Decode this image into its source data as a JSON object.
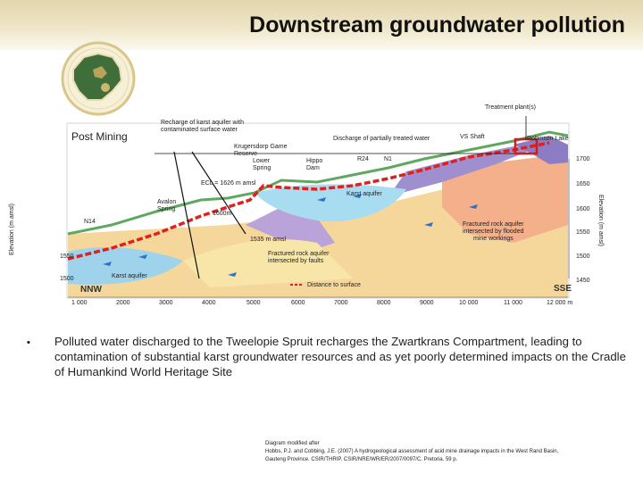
{
  "title": "Downstream groundwater pollution",
  "diagram": {
    "post_mining": "Post Mining",
    "treatment_plant": "Treatment plant(s)",
    "recharge_label_1": "Recharge of karst aquifer with",
    "recharge_label_2": "contaminated surface water",
    "discharge_label": "Discharge of partially treated water",
    "compartment_1": "Krugersdorp Game",
    "compartment_2": "Reserve",
    "spring_1": "Lower",
    "spring_2": "Spring",
    "hippo_1": "Hippo",
    "hippo_2": "Dam",
    "karst_aquifer_right": "Karst aquifer",
    "karst_aquifer_left": "Karst aquifer",
    "fractured_mine_1": "Fractured rock aquifer",
    "fractured_mine_2": "intersected by flooded",
    "fractured_mine_3": "mine workings",
    "fractured_faults_1": "Fractured rock aquifer",
    "fractured_faults_2": "intersected by faults",
    "ecl": "ECL = 1626 m amsl",
    "level_1535": "1535 m amsl",
    "level_1600": "1600m",
    "avalon_1": "Avalon",
    "avalon_2": "Spring",
    "n14": "N14",
    "vs_shaft": "VS Shaft",
    "robinson_lake": "Robinson Lake",
    "r24": "R24",
    "n1": "N1",
    "nnw": "NNW",
    "sse": "SSE",
    "dist_legend": "Distance to surface",
    "y_axis_left": "Elevation (m amsl)",
    "y_axis_right": "Elevation (m amsl)",
    "right_ticks": [
      "1700",
      "1650",
      "1600",
      "1550",
      "1500",
      "1450"
    ],
    "left_ticks": [
      "1550",
      "1500"
    ],
    "x_ticks": [
      "1 000",
      "2000",
      "3000",
      "4000",
      "5000",
      "6000",
      "7000",
      "8000",
      "9000",
      "10 000",
      "11 000",
      "12 000 m"
    ]
  },
  "bullet": "Polluted water discharged to the Tweelopie Spruit recharges the Zwartkrans Compartment, leading to contamination of substantial karst groundwater resources and as yet poorly determined impacts on the Cradle of Humankind World Heritage Site",
  "source": {
    "line1": "Diagram modified after",
    "line2": "Hobbs, P.J. and Cobbing, J.E. (2007) A hydrogeological assessment of acid mine drainage impacts in the West Rand Basin,",
    "line3": "Gauteng Province. CSIR/THRIP. CSIR/NRE/WR/ER/2007/0097/C. Pretoria. 59 p."
  }
}
